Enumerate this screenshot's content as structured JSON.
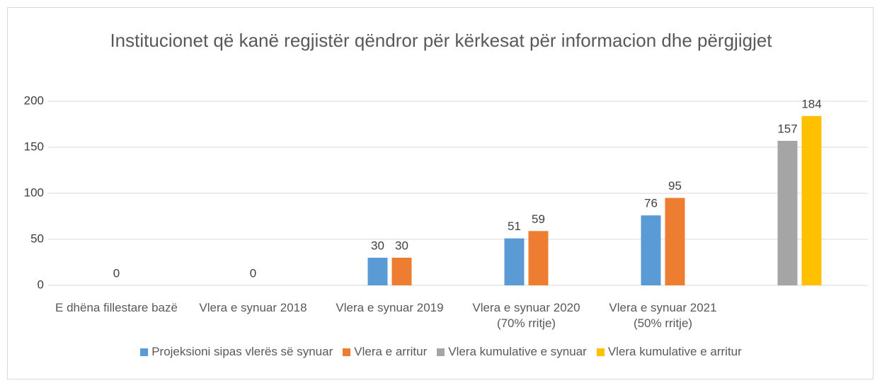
{
  "chart_data": {
    "type": "bar",
    "title": "Institucionet që kanë regjistër qëndror për kërkesat për informacion dhe përgjigjet",
    "categories": [
      "E dhëna fillestare bazë",
      "Vlera e synuar 2018",
      "Vlera e synuar 2019",
      "Vlera e synuar 2020 (70% rritje)",
      "Vlera e synuar 2021 (50% rritje)",
      null
    ],
    "series": [
      {
        "name": "Projeksioni sipas vlerës së synuar",
        "color": "#5b9bd5",
        "values": [
          0,
          0,
          30,
          51,
          76,
          null
        ]
      },
      {
        "name": "Vlera e arritur",
        "color": "#ed7d31",
        "values": [
          null,
          null,
          30,
          59,
          95,
          null
        ]
      },
      {
        "name": "Vlera kumulative e synuar",
        "color": "#a5a5a5",
        "values": [
          null,
          null,
          null,
          null,
          null,
          157
        ]
      },
      {
        "name": "Vlera kumulative e arritur",
        "color": "#ffc000",
        "values": [
          null,
          null,
          null,
          null,
          null,
          184
        ]
      }
    ],
    "ylim": [
      0,
      200
    ],
    "yticks": [
      0,
      50,
      100,
      150,
      200
    ],
    "grid": true,
    "legend": "bottom"
  }
}
